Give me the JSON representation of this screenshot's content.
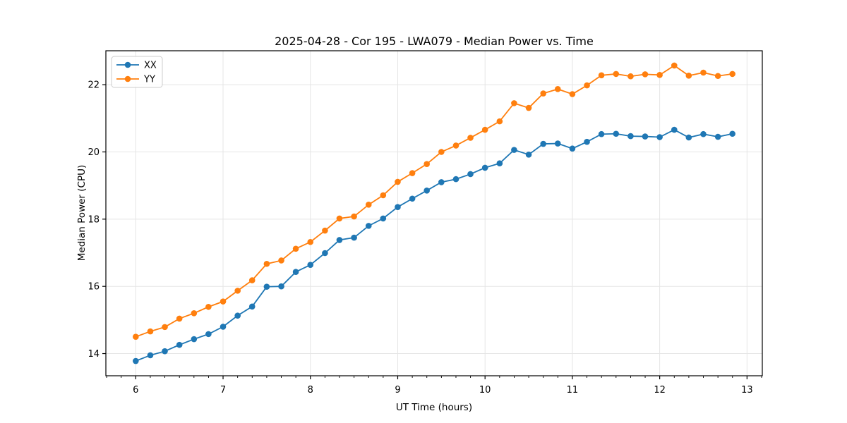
{
  "chart_data": {
    "type": "line",
    "title": "2025-04-28 - Cor 195 - LWA079 - Median Power vs. Time",
    "xlabel": "UT Time (hours)",
    "ylabel": "Median Power (CPU)",
    "xlim": [
      5.658,
      13.175
    ],
    "ylim": [
      13.34,
      23.01
    ],
    "x_ticks": [
      6,
      7,
      8,
      9,
      10,
      11,
      12,
      13
    ],
    "y_ticks": [
      14,
      16,
      18,
      20,
      22
    ],
    "x_minor_tick_step": 0.16667,
    "grid": true,
    "legend_position": "upper left",
    "background_color": "#ffffff",
    "grid_color": "#e5e5e5",
    "spine_color": "#000000",
    "x": [
      6.0,
      6.167,
      6.333,
      6.5,
      6.667,
      6.833,
      7.0,
      7.167,
      7.333,
      7.5,
      7.667,
      7.833,
      8.0,
      8.167,
      8.333,
      8.5,
      8.667,
      8.833,
      9.0,
      9.167,
      9.333,
      9.5,
      9.667,
      9.833,
      10.0,
      10.167,
      10.333,
      10.5,
      10.667,
      10.833,
      11.0,
      11.167,
      11.333,
      11.5,
      11.667,
      11.833,
      12.0,
      12.167,
      12.333,
      12.5,
      12.667,
      12.833
    ],
    "series": [
      {
        "name": "XX",
        "color": "#1f77b4",
        "values": [
          13.78,
          13.95,
          14.07,
          14.26,
          14.43,
          14.58,
          14.8,
          15.13,
          15.4,
          15.99,
          16.0,
          16.43,
          16.64,
          16.99,
          17.38,
          17.45,
          17.8,
          18.02,
          18.36,
          18.61,
          18.85,
          19.1,
          19.19,
          19.34,
          19.53,
          19.66,
          20.06,
          19.92,
          20.24,
          20.25,
          20.1,
          20.3,
          20.53,
          20.54,
          20.47,
          20.46,
          20.44,
          20.66,
          20.43,
          20.53,
          20.45,
          20.54
        ]
      },
      {
        "name": "YY",
        "color": "#ff7f0e",
        "values": [
          14.5,
          14.66,
          14.79,
          15.04,
          15.2,
          15.39,
          15.55,
          15.87,
          16.18,
          16.67,
          16.77,
          17.12,
          17.32,
          17.66,
          18.02,
          18.08,
          18.43,
          18.71,
          19.11,
          19.37,
          19.64,
          20.0,
          20.19,
          20.42,
          20.66,
          20.91,
          21.45,
          21.31,
          21.74,
          21.87,
          21.72,
          21.98,
          22.28,
          22.32,
          22.25,
          22.31,
          22.29,
          22.57,
          22.27,
          22.36,
          22.26,
          22.32
        ]
      }
    ]
  }
}
